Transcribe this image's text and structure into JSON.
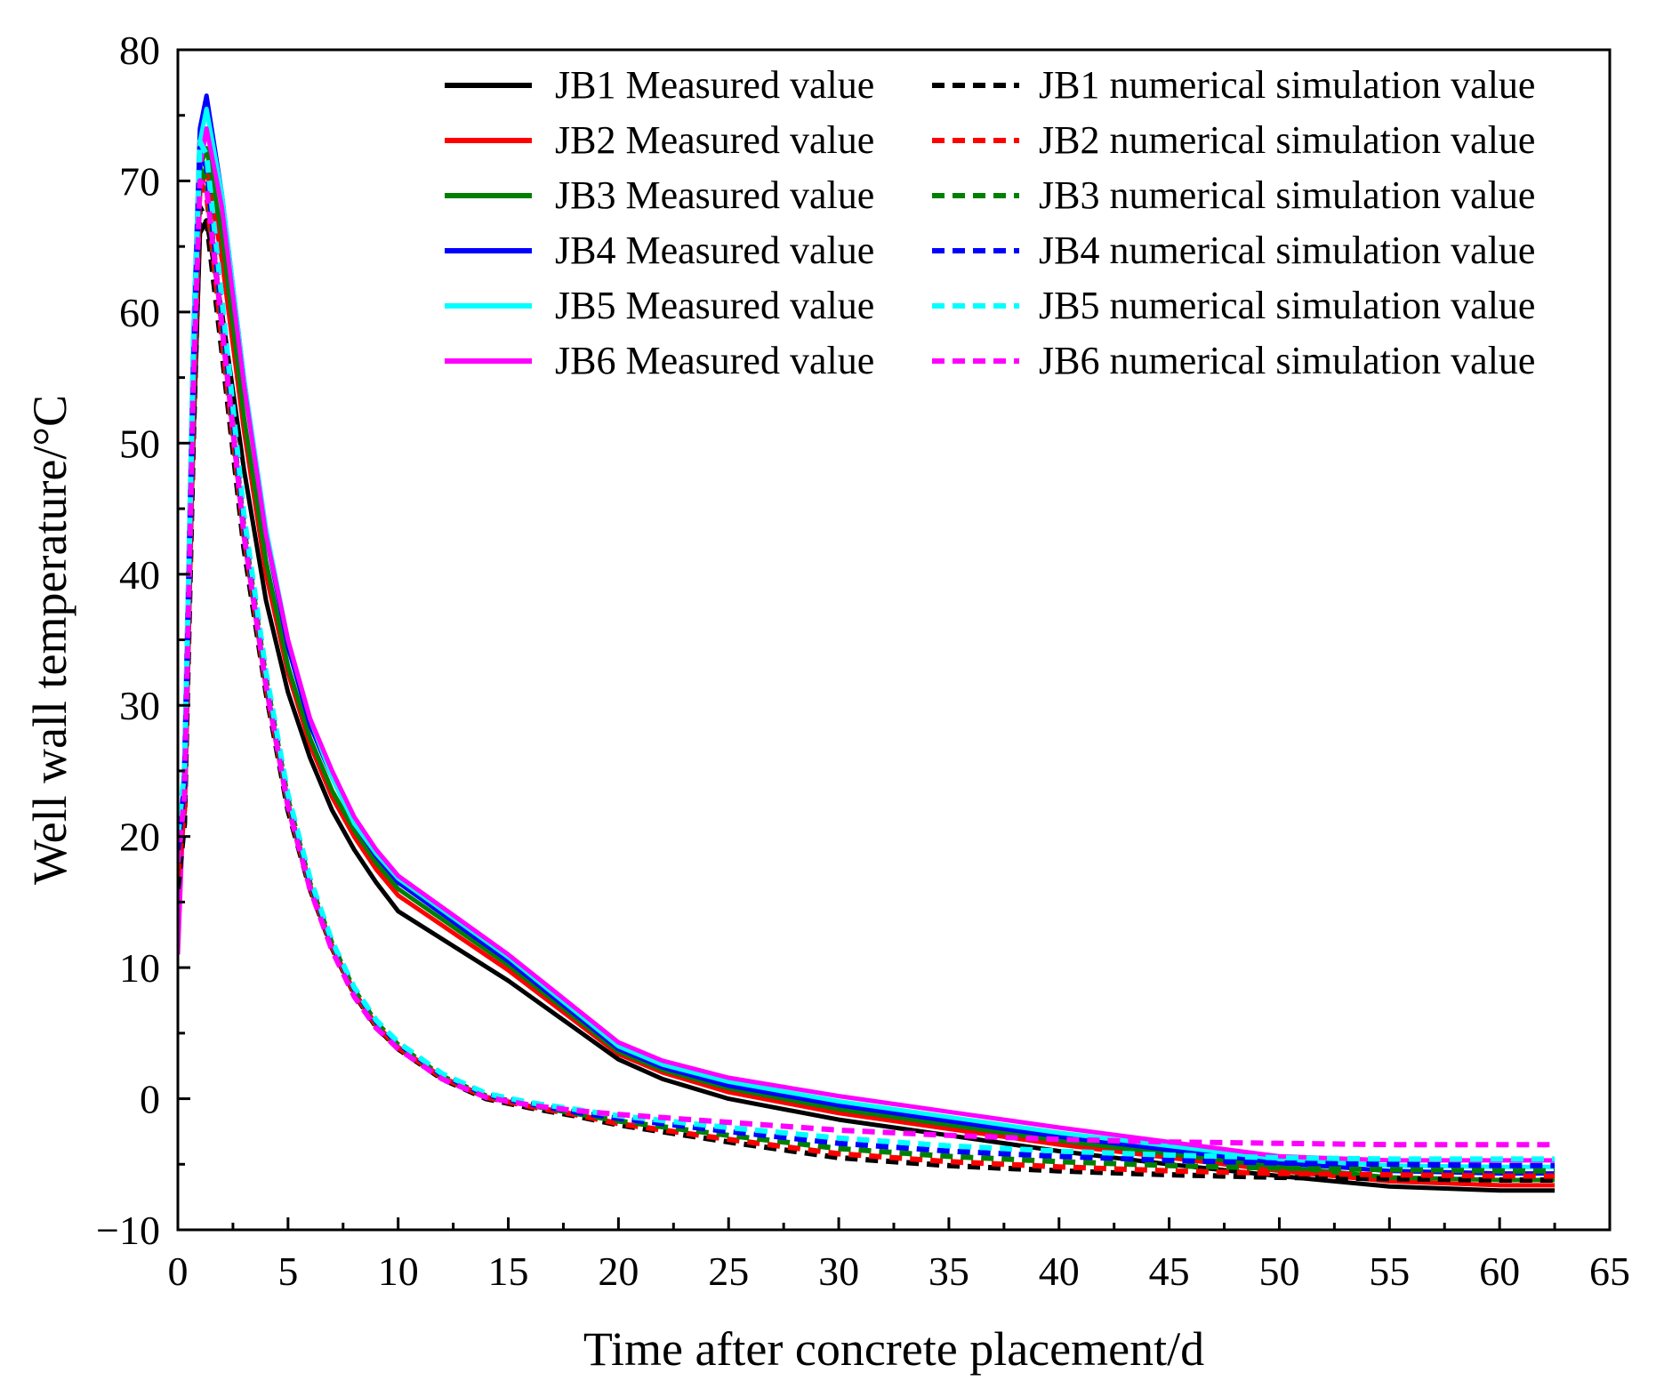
{
  "chart_data": {
    "type": "line",
    "title": "",
    "xlabel": "Time after concrete placement/d",
    "ylabel": "Well wall temperature/°C",
    "xlim": [
      0,
      65
    ],
    "ylim": [
      -10,
      80
    ],
    "xticks": [
      0,
      5,
      10,
      15,
      20,
      25,
      30,
      35,
      40,
      45,
      50,
      55,
      60,
      65
    ],
    "yticks": [
      -10,
      0,
      10,
      20,
      30,
      40,
      50,
      60,
      70,
      80
    ],
    "xtick_labels": [
      "0",
      "5",
      "10",
      "15",
      "20",
      "25",
      "30",
      "35",
      "40",
      "45",
      "50",
      "55",
      "60",
      "65"
    ],
    "ytick_labels": [
      "−10",
      "0",
      "10",
      "20",
      "30",
      "40",
      "50",
      "60",
      "70",
      "80"
    ],
    "grid": false,
    "legend_position": "top-right",
    "series": [
      {
        "name": "JB1 Measured value",
        "color": "#000000",
        "style": "solid",
        "x": [
          0,
          0.3,
          0.7,
          1.0,
          1.3,
          2,
          3,
          4,
          5,
          6,
          7,
          8,
          9,
          10,
          15,
          20,
          22,
          25,
          30,
          35,
          40,
          45,
          50,
          55,
          60,
          62.5
        ],
        "y": [
          17,
          25,
          50,
          66,
          67,
          60,
          48,
          38,
          31,
          26,
          22,
          19,
          16.5,
          14.3,
          9,
          3,
          1.5,
          0,
          -1.6,
          -2.8,
          -4,
          -5,
          -5.9,
          -6.7,
          -7,
          -7
        ]
      },
      {
        "name": "JB2 Measured value",
        "color": "#ff0000",
        "style": "solid",
        "x": [
          0,
          0.3,
          0.7,
          1.0,
          1.3,
          2,
          3,
          4,
          5,
          6,
          7,
          8,
          9,
          10,
          15,
          20,
          22,
          25,
          30,
          35,
          40,
          45,
          50,
          55,
          60,
          62.5
        ],
        "y": [
          15,
          24,
          52,
          69,
          71,
          64,
          51,
          40,
          32.5,
          27,
          23,
          20,
          17.5,
          15.5,
          9.8,
          3.4,
          2,
          0.5,
          -1.1,
          -2.3,
          -3.5,
          -4.5,
          -5.5,
          -6.3,
          -6.6,
          -6.6
        ]
      },
      {
        "name": "JB3 Measured value",
        "color": "#008000",
        "style": "solid",
        "x": [
          0,
          0.3,
          0.7,
          1.0,
          1.3,
          2,
          3,
          4,
          5,
          6,
          7,
          8,
          9,
          10,
          15,
          20,
          22,
          25,
          30,
          35,
          40,
          45,
          50,
          55,
          60,
          62.5
        ],
        "y": [
          16,
          24,
          54,
          71,
          72.5,
          66,
          52,
          41,
          33,
          27.5,
          23.5,
          20.5,
          18,
          16,
          10.2,
          3.6,
          2.2,
          0.8,
          -0.8,
          -2,
          -3.2,
          -4.2,
          -5.2,
          -6,
          -6.2,
          -6.2
        ]
      },
      {
        "name": "JB4 Measured value",
        "color": "#0000ff",
        "style": "solid",
        "x": [
          0,
          0.3,
          0.7,
          1.0,
          1.3,
          2,
          3,
          4,
          5,
          6,
          7,
          8,
          9,
          10,
          15,
          20,
          22,
          25,
          30,
          35,
          40,
          45,
          50,
          55,
          60,
          62.5
        ],
        "y": [
          14,
          26,
          58,
          74,
          76.5,
          69,
          55,
          43,
          34.5,
          28.5,
          24.5,
          21,
          18.5,
          16.5,
          10.5,
          3.8,
          2.4,
          1,
          -0.5,
          -1.7,
          -2.9,
          -3.9,
          -4.9,
          -5.5,
          -5.7,
          -5.7
        ]
      },
      {
        "name": "JB5 Measured value",
        "color": "#00ffff",
        "style": "solid",
        "x": [
          0,
          0.3,
          0.7,
          1.0,
          1.3,
          2,
          3,
          4,
          5,
          6,
          7,
          8,
          9,
          10,
          15,
          20,
          22,
          25,
          30,
          35,
          40,
          45,
          50,
          55,
          60,
          62.5
        ],
        "y": [
          13,
          26,
          58,
          73,
          75.5,
          69,
          55,
          43.5,
          35,
          29,
          24.5,
          21,
          18.7,
          16.8,
          10.8,
          4,
          2.6,
          1.3,
          -0.2,
          -1.4,
          -2.6,
          -3.6,
          -4.6,
          -5.1,
          -5.2,
          -5.2
        ]
      },
      {
        "name": "JB6 Measured value",
        "color": "#ff00ff",
        "style": "solid",
        "x": [
          0,
          0.3,
          0.7,
          1.0,
          1.3,
          2,
          3,
          4,
          5,
          6,
          7,
          8,
          9,
          10,
          15,
          20,
          22,
          25,
          30,
          35,
          40,
          45,
          50,
          55,
          60,
          62.5
        ],
        "y": [
          11,
          24,
          55,
          71,
          74,
          68,
          54.5,
          43,
          35,
          29,
          25,
          21.5,
          19,
          17,
          11,
          4.3,
          2.9,
          1.6,
          0.2,
          -1,
          -2.2,
          -3.3,
          -4.4,
          -4.7,
          -4.7,
          -4.7
        ]
      },
      {
        "name": "JB1 numerical simulation value",
        "color": "#000000",
        "style": "dashed",
        "x": [
          0,
          0.3,
          0.7,
          1.0,
          1.3,
          2,
          3,
          4,
          5,
          6,
          7,
          8,
          9,
          10,
          12,
          14,
          16,
          18,
          20,
          25,
          30,
          35,
          40,
          45,
          50,
          55,
          60,
          62.5
        ],
        "y": [
          16,
          21,
          50,
          68,
          67,
          57,
          42,
          31,
          22,
          16,
          11.5,
          8,
          5.5,
          3.8,
          1.5,
          0,
          -0.7,
          -1.3,
          -2,
          -3.3,
          -4.5,
          -5.1,
          -5.5,
          -5.8,
          -6.0,
          -6.1,
          -6.2,
          -6.2
        ]
      },
      {
        "name": "JB2 numerical simulation value",
        "color": "#ff0000",
        "style": "dashed",
        "x": [
          0,
          0.3,
          0.7,
          1.0,
          1.3,
          2,
          3,
          4,
          5,
          6,
          7,
          8,
          9,
          10,
          12,
          14,
          16,
          18,
          20,
          25,
          30,
          35,
          40,
          45,
          50,
          55,
          60,
          62.5
        ],
        "y": [
          17,
          22,
          52,
          70,
          69,
          58,
          43,
          31.5,
          22.5,
          16.2,
          11.6,
          8.1,
          5.6,
          3.9,
          1.6,
          0.1,
          -0.6,
          -1.2,
          -1.9,
          -3.1,
          -4.2,
          -4.8,
          -5.2,
          -5.5,
          -5.7,
          -5.8,
          -5.9,
          -5.9
        ]
      },
      {
        "name": "JB3 numerical simulation value",
        "color": "#008000",
        "style": "dashed",
        "x": [
          0,
          0.3,
          0.7,
          1.0,
          1.3,
          2,
          3,
          4,
          5,
          6,
          7,
          8,
          9,
          10,
          12,
          14,
          16,
          18,
          20,
          25,
          30,
          35,
          40,
          45,
          50,
          55,
          60,
          62.5
        ],
        "y": [
          18,
          23,
          53,
          71,
          70,
          59,
          43.5,
          32,
          22.8,
          16.4,
          11.8,
          8.3,
          5.8,
          4.1,
          1.7,
          0.2,
          -0.5,
          -1.1,
          -1.7,
          -2.8,
          -3.8,
          -4.4,
          -4.8,
          -5.1,
          -5.3,
          -5.4,
          -5.5,
          -5.5
        ]
      },
      {
        "name": "JB4 numerical simulation value",
        "color": "#0000ff",
        "style": "dashed",
        "x": [
          0,
          0.3,
          0.7,
          1.0,
          1.3,
          2,
          3,
          4,
          5,
          6,
          7,
          8,
          9,
          10,
          12,
          14,
          16,
          18,
          20,
          25,
          30,
          35,
          40,
          45,
          50,
          55,
          60,
          62.5
        ],
        "y": [
          19,
          24,
          55,
          72.5,
          71,
          60,
          44,
          32.3,
          23,
          16.6,
          11.9,
          8.4,
          5.9,
          4.2,
          1.8,
          0.3,
          -0.4,
          -1,
          -1.5,
          -2.5,
          -3.4,
          -4,
          -4.4,
          -4.7,
          -4.9,
          -5,
          -5.1,
          -5.1
        ]
      },
      {
        "name": "JB5 numerical simulation value",
        "color": "#00ffff",
        "style": "dashed",
        "x": [
          0,
          0.3,
          0.7,
          1.0,
          1.3,
          2,
          3,
          4,
          5,
          6,
          7,
          8,
          9,
          10,
          12,
          14,
          16,
          18,
          20,
          25,
          30,
          35,
          40,
          45,
          50,
          55,
          60,
          62.5
        ],
        "y": [
          20,
          25,
          56,
          73,
          72,
          61,
          44.5,
          32.5,
          23.2,
          16.8,
          12,
          8.5,
          6,
          4.3,
          1.9,
          0.4,
          -0.3,
          -0.8,
          -1.3,
          -2.2,
          -3,
          -3.6,
          -4,
          -4.3,
          -4.5,
          -4.6,
          -4.6,
          -4.6
        ]
      },
      {
        "name": "JB6 numerical simulation value",
        "color": "#ff00ff",
        "style": "dashed",
        "x": [
          0,
          0.3,
          0.7,
          1.0,
          1.3,
          2,
          3,
          4,
          5,
          6,
          7,
          8,
          9,
          10,
          12,
          14,
          16,
          18,
          20,
          25,
          30,
          35,
          40,
          45,
          50,
          55,
          60,
          62.5
        ],
        "y": [
          18,
          23,
          54,
          70,
          69.5,
          59,
          43,
          31.5,
          22.3,
          16,
          11.3,
          7.8,
          5.4,
          3.8,
          1.5,
          0.1,
          -0.5,
          -0.9,
          -1.2,
          -1.8,
          -2.4,
          -2.8,
          -3.1,
          -3.3,
          -3.4,
          -3.5,
          -3.5,
          -3.5
        ]
      }
    ]
  }
}
